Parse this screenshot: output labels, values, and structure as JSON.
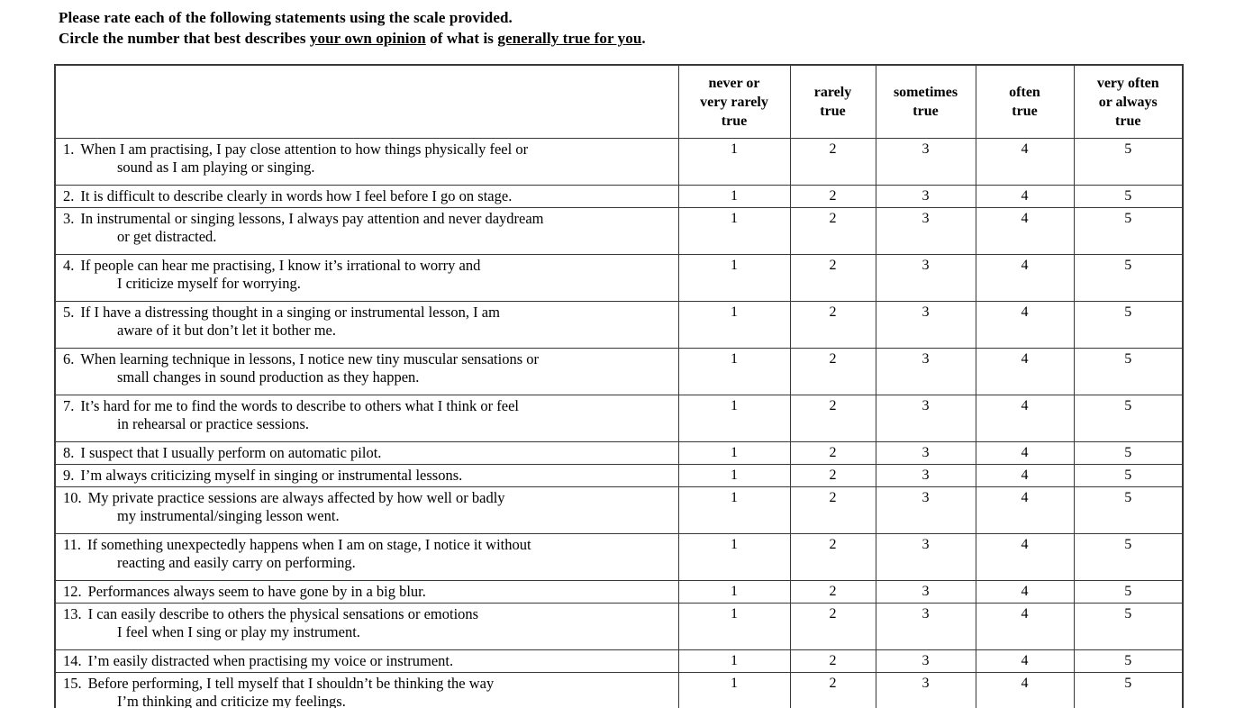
{
  "instructions": {
    "line1": "Please rate each of the following statements using the scale provided.",
    "line2": {
      "prefix": "Circle the number that best describes ",
      "underline1": "your own opinion",
      "middle": " of what is ",
      "underline2": "generally true for you",
      "suffix": "."
    }
  },
  "table": {
    "column_headers": [
      "never or\nvery rarely\ntrue",
      "rarely\ntrue",
      "sometimes\ntrue",
      "often\ntrue",
      "very often\nor always\ntrue"
    ],
    "scale_values": [
      "1",
      "2",
      "3",
      "4",
      "5"
    ],
    "statements": [
      {
        "num": "1.",
        "line1": "When I am practising, I pay close attention to how things physically feel or",
        "line2": "sound as I am playing or singing."
      },
      {
        "num": "2.",
        "line1": "It is difficult to describe clearly in words how I feel before I go on stage.",
        "line2": null
      },
      {
        "num": "3.",
        "line1": "In instrumental or singing lessons, I always pay attention and never daydream",
        "line2": "or get distracted."
      },
      {
        "num": "4.",
        "line1": "If people can hear me practising, I know it’s irrational to worry and",
        "line2": "I criticize myself for worrying."
      },
      {
        "num": "5.",
        "line1": "If I have a distressing thought in a singing or instrumental lesson, I am",
        "line2": "aware of it but don’t let it bother me."
      },
      {
        "num": "6.",
        "line1": "When learning technique in lessons, I notice new tiny muscular sensations or",
        "line2": "small changes in sound production as they happen."
      },
      {
        "num": "7.",
        "line1": "It’s hard for me to find the words to describe to others what I think or feel",
        "line2": "in rehearsal or practice sessions."
      },
      {
        "num": "8.",
        "line1": "I suspect that I usually perform on automatic pilot.",
        "line2": null
      },
      {
        "num": "9.",
        "line1": "I’m always criticizing myself in singing or instrumental lessons.",
        "line2": null
      },
      {
        "num": "10.",
        "line1": "My private practice sessions are always affected by how well or badly",
        "line2": "my instrumental/singing lesson went."
      },
      {
        "num": "11.",
        "line1": "If something unexpectedly happens when I am on stage, I notice it without",
        "line2": "reacting and easily carry on performing."
      },
      {
        "num": "12.",
        "line1": "Performances always seem to have gone by in a big blur.",
        "line2": null
      },
      {
        "num": "13.",
        "line1": "I can easily describe to others the physical sensations or emotions",
        "line2": "I feel when I sing or play my instrument."
      },
      {
        "num": "14.",
        "line1": "I’m easily distracted when practising my voice or instrument.",
        "line2": null
      },
      {
        "num": "15.",
        "line1": "Before performing, I tell myself that I shouldn’t be thinking the way",
        "line2": "I’m thinking and criticize my feelings."
      }
    ]
  }
}
